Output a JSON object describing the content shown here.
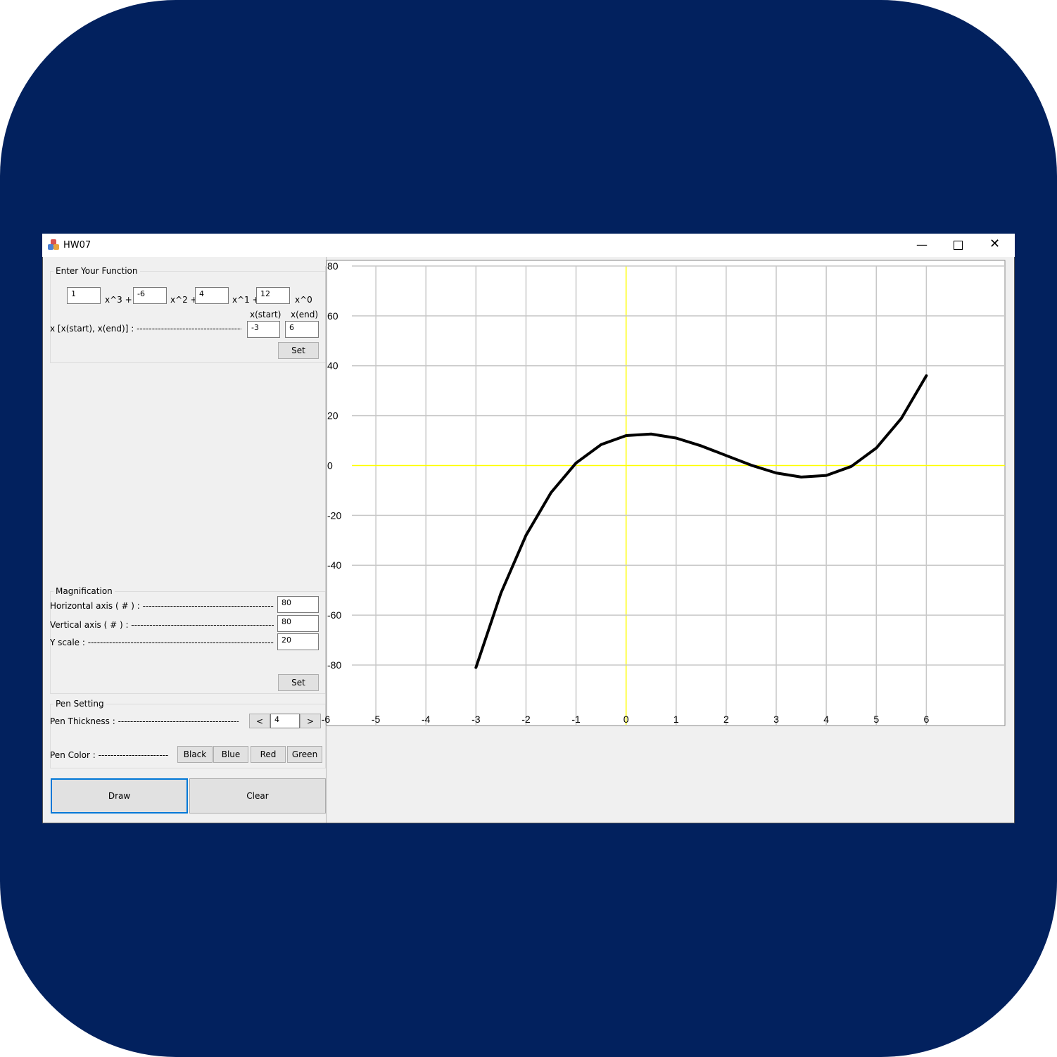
{
  "window": {
    "title": "HW07"
  },
  "function_group": {
    "title": "Enter Your Function",
    "coefficients": [
      "1",
      "-6",
      "4",
      "12"
    ],
    "terms": [
      "x^3 +",
      "x^2 +",
      "x^1 +",
      "x^0"
    ],
    "range_label": "x [x(start), x(end)] : ------------------------------------------",
    "start_header": "x(start)",
    "end_header": "x(end)",
    "start": "-3",
    "end": "6",
    "set": "Set"
  },
  "magnification": {
    "title": "Magnification",
    "rows": [
      {
        "label": "Horizontal axis ( # ) : --------------------------------------------------",
        "value": "80"
      },
      {
        "label": "Vertical axis ( # ) : ------------------------------------------------------",
        "value": "80"
      },
      {
        "label": "Y scale : ------------------------------------------------------------------",
        "value": "20"
      }
    ],
    "set": "Set"
  },
  "pen": {
    "title": "Pen Setting",
    "thickness_label": "Pen Thickness : ------------------------------------------",
    "dec": "<",
    "thickness": "4",
    "inc": ">",
    "color_label": "Pen Color : -------------------------",
    "colors": [
      "Black",
      "Blue",
      "Red",
      "Green"
    ]
  },
  "actions": [
    "Draw",
    "Clear"
  ],
  "chart_data": {
    "type": "line",
    "x": [
      -3,
      -2.5,
      -2,
      -1.5,
      -1,
      -0.5,
      0,
      0.5,
      1,
      1.5,
      2,
      2.5,
      3,
      3.5,
      4,
      4.5,
      5,
      5.5,
      6
    ],
    "values": [
      -81,
      -51.125,
      -28,
      -10.875,
      1,
      8.375,
      12,
      12.625,
      11,
      7.875,
      4,
      0.125,
      -3,
      -4.625,
      -4,
      -0.375,
      7,
      18.875,
      36
    ],
    "color": "#000000",
    "axis_color": "#ffff00",
    "grid": true,
    "xlim": [
      -6,
      7.57
    ],
    "ylim": [
      -104,
      80
    ],
    "xticks": [
      -6,
      -5,
      -4,
      -3,
      -2,
      -1,
      0,
      1,
      2,
      3,
      4,
      5,
      6
    ],
    "yticks": [
      80,
      60,
      40,
      20,
      0,
      -20,
      -40,
      -60,
      -80
    ]
  }
}
